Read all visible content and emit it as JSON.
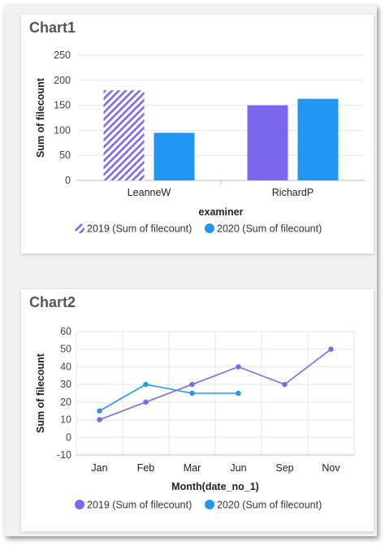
{
  "colors": {
    "series_2019": "#7b68ee",
    "series_2020": "#2196f3",
    "grid": "#e6e6e6",
    "axis_text": "#444444",
    "title": "#555555"
  },
  "chart_data": [
    {
      "type": "bar",
      "title": "Chart1",
      "xlabel": "examiner",
      "ylabel": "Sum of filecount",
      "categories": [
        "LeanneW",
        "RichardP"
      ],
      "ylim": [
        0,
        250
      ],
      "yticks": [
        0,
        50,
        100,
        150,
        200,
        250
      ],
      "grid": true,
      "legend_position": "bottom",
      "series": [
        {
          "name": "2019 (Sum of filecount)",
          "values": [
            180,
            150
          ]
        },
        {
          "name": "2020 (Sum of filecount)",
          "values": [
            95,
            163
          ]
        }
      ],
      "notes_visual": "LeanneW 2019 bar drawn with diagonal hatch pattern"
    },
    {
      "type": "line",
      "title": "Chart2",
      "xlabel": "Month(date_no_1)",
      "ylabel": "Sum of filecount",
      "categories": [
        "Jan",
        "Feb",
        "Mar",
        "Jun",
        "Sep",
        "Nov"
      ],
      "ylim": [
        -10,
        60
      ],
      "yticks": [
        -10,
        0,
        10,
        20,
        30,
        40,
        50,
        60
      ],
      "grid": true,
      "legend_position": "bottom",
      "series": [
        {
          "name": "2019 (Sum of filecount)",
          "values": [
            10,
            20,
            30,
            40,
            30,
            50
          ]
        },
        {
          "name": "2020 (Sum of filecount)",
          "values": [
            15,
            30,
            25,
            25,
            null,
            null
          ]
        }
      ]
    }
  ]
}
